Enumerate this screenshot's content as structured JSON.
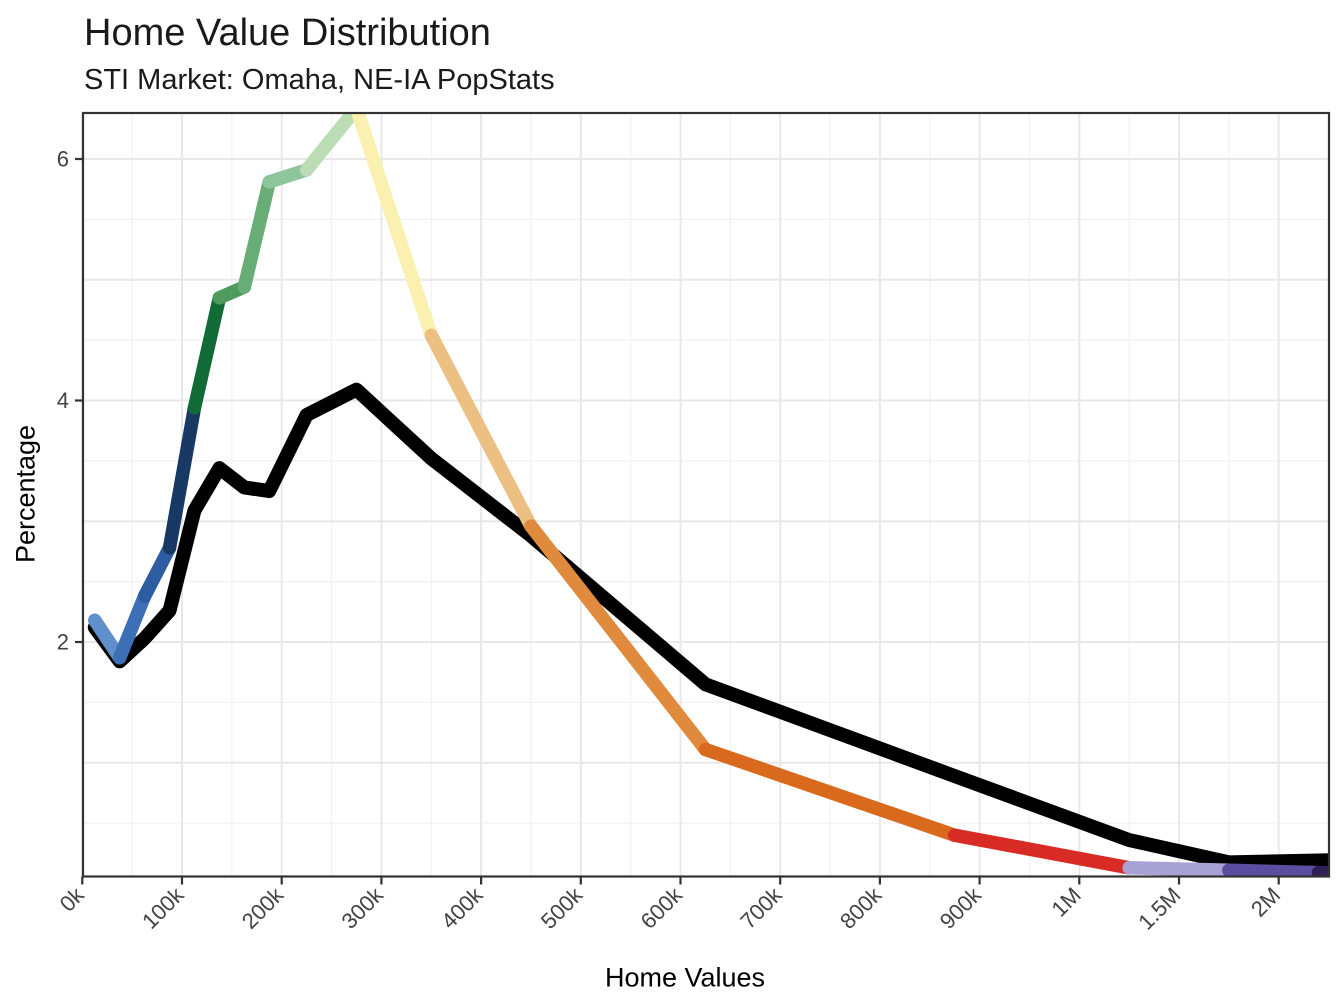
{
  "page": {
    "background": "#ffffff"
  },
  "chart_data": {
    "type": "line",
    "title": "Home Value Distribution",
    "subtitle": "STI Market: Omaha, NE-IA PopStats",
    "xlabel": "Home Values",
    "ylabel": "Percentage",
    "legend": "none",
    "grid": "on",
    "y_axis_range_shown": [
      0.06,
      6.38
    ],
    "x_ticks": [
      {
        "label": "0k",
        "value_k": 0
      },
      {
        "label": "100k",
        "value_k": 100
      },
      {
        "label": "200k",
        "value_k": 200
      },
      {
        "label": "300k",
        "value_k": 300
      },
      {
        "label": "400k",
        "value_k": 400
      },
      {
        "label": "500k",
        "value_k": 500
      },
      {
        "label": "600k",
        "value_k": 600
      },
      {
        "label": "700k",
        "value_k": 700
      },
      {
        "label": "800k",
        "value_k": 800
      },
      {
        "label": "900k",
        "value_k": 900
      },
      {
        "label": "1M",
        "value_k": 1000
      },
      {
        "label": "1.5M",
        "value_k": 1500
      },
      {
        "label": "2M",
        "value_k": 2000
      }
    ],
    "x_minor_gridlines_k": [
      50,
      150,
      250,
      350,
      450,
      550,
      650,
      750,
      850,
      950,
      1250,
      1750
    ],
    "y_ticks": [
      {
        "label": "2",
        "value": 2
      },
      {
        "label": "4",
        "value": 4
      },
      {
        "label": "6",
        "value": 6
      }
    ],
    "y_major_gridlines": [
      1,
      2,
      3,
      4,
      5,
      6
    ],
    "y_minor_gridlines": [
      0.5,
      1.5,
      2.5,
      3.5,
      4.5,
      5.5
    ],
    "x_bins_k": [
      12.5,
      37.5,
      62.5,
      87.5,
      112.5,
      137.5,
      162.5,
      187.5,
      225,
      275,
      350,
      450,
      625,
      875,
      1250,
      1750,
      2200,
      2430
    ],
    "series": [
      {
        "id": "black-total-line",
        "color": "#000000",
        "values_pct": [
          2.12,
          1.84,
          2.03,
          2.26,
          3.09,
          3.44,
          3.28,
          3.25,
          3.88,
          4.09,
          3.52,
          2.88,
          1.65,
          0.89,
          0.36,
          0.175,
          0.19,
          0.2
        ]
      },
      {
        "id": "colored-bin-line",
        "values_pct": [
          2.18,
          1.87,
          2.38,
          2.78,
          3.94,
          4.85,
          4.94,
          5.81,
          5.91,
          6.42,
          4.54,
          2.96,
          1.11,
          0.4,
          0.13,
          0.11,
          0.09,
          0.075
        ],
        "segment_colors": [
          "#6090cc",
          "#3c6fb6",
          "#2e5ca3",
          "#183963",
          "#126b36",
          "#4f9a5e",
          "#68ad76",
          "#8dc69b",
          "#bbdcb4",
          "#faf0b0",
          "#ecc083",
          "#e08a3e",
          "#d9691c",
          "#d92b26",
          "#a8a1d3",
          "#5b4da2",
          "#2f2059"
        ]
      }
    ]
  },
  "colors": {
    "grid_major": "#e8e8e8",
    "grid_minor": "#f2f2f2",
    "panel_border": "#333333",
    "tick_mark": "#333333",
    "tick_label": "#434343",
    "title_text": "#1a1a1a"
  }
}
